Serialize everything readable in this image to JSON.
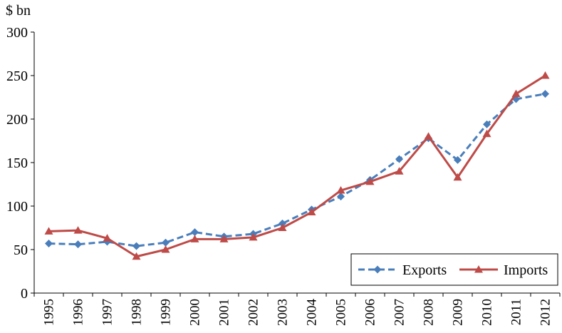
{
  "chart_data": {
    "type": "line",
    "title": "",
    "ylabel": "$ bn",
    "xlabel": "",
    "ylim": [
      0,
      300
    ],
    "yticks": [
      0,
      50,
      100,
      150,
      200,
      250,
      300
    ],
    "grid": false,
    "legend_position": "bottom-right",
    "categories": [
      "1995",
      "1996",
      "1997",
      "1998",
      "1999",
      "2000",
      "2001",
      "2002",
      "2003",
      "2004",
      "2005",
      "2006",
      "2007",
      "2008",
      "2009",
      "2010",
      "2011",
      "2012"
    ],
    "series": [
      {
        "name": "Exports",
        "color": "#4a7ebb",
        "style": "dashed",
        "marker": "diamond",
        "values": [
          57,
          56,
          59,
          54,
          58,
          70,
          65,
          68,
          80,
          96,
          111,
          130,
          154,
          178,
          153,
          194,
          223,
          229
        ]
      },
      {
        "name": "Imports",
        "color": "#be4b48",
        "style": "solid",
        "marker": "triangle",
        "values": [
          71,
          72,
          63,
          42,
          50,
          62,
          62,
          64,
          75,
          93,
          118,
          128,
          140,
          180,
          133,
          183,
          229,
          250
        ]
      }
    ]
  }
}
